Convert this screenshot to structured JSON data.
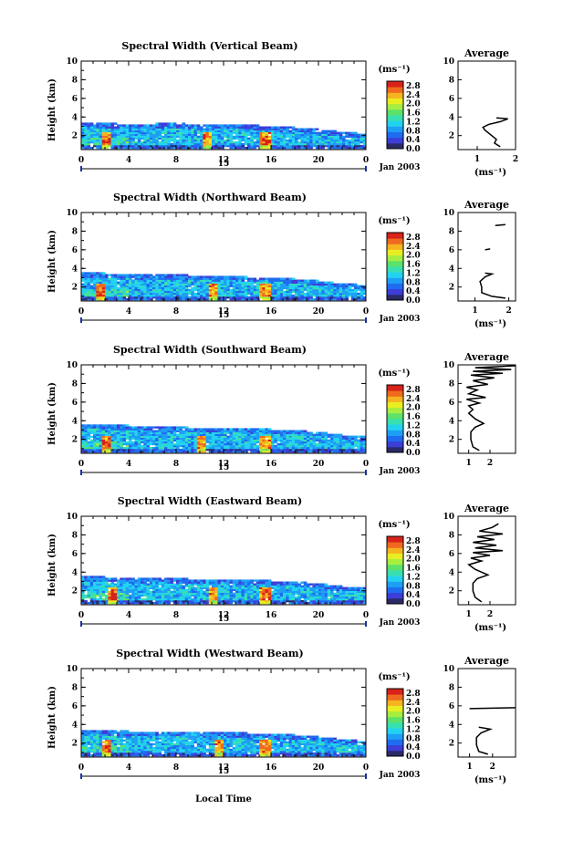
{
  "figure": {
    "xlabel": "Local Time",
    "date_label": "Jan 2003",
    "day_label": "15",
    "units_label": "(ms⁻¹)",
    "avg_title": "Average",
    "avg_xlabel": "(ms⁻¹)",
    "ylabel": "Height (km)"
  },
  "colors": {
    "colorbar": [
      "#2a2a66",
      "#3d3dd8",
      "#1e6cf0",
      "#1e9ff5",
      "#22d3f0",
      "#38e0b0",
      "#5ce26a",
      "#a6ee40",
      "#e9ee22",
      "#f5b320",
      "#ef6a1e",
      "#d8221a"
    ],
    "background": "#ffffff",
    "profile_line": "#000000"
  },
  "chart_data": [
    {
      "type": "heatmap",
      "title": "Spectral Width (Vertical Beam)",
      "xlabel": "Local Time",
      "ylabel": "Height (km)",
      "x_ticks": [
        "0",
        "4",
        "8",
        "12",
        "16",
        "20",
        "0"
      ],
      "xlim": [
        0,
        24
      ],
      "y_ticks": [
        "2",
        "4",
        "6",
        "8",
        "10"
      ],
      "ylim": [
        0.5,
        10
      ],
      "colorbar_ticks": [
        "0.0",
        "0.4",
        "0.8",
        "1.2",
        "1.6",
        "2.0",
        "2.4",
        "2.8"
      ],
      "clim": [
        0,
        3.0
      ],
      "echo_top_km": [
        [
          0,
          3.4
        ],
        [
          2,
          3.3
        ],
        [
          4,
          3.1
        ],
        [
          6,
          3.2
        ],
        [
          8,
          3.3
        ],
        [
          10,
          3.0
        ],
        [
          12,
          3.2
        ],
        [
          14,
          3.1
        ],
        [
          16,
          2.9
        ],
        [
          18,
          2.8
        ],
        [
          20,
          2.6
        ],
        [
          22,
          2.3
        ],
        [
          24,
          2.1
        ]
      ],
      "high_width_times": [
        2.0,
        10.5,
        15.3
      ],
      "average_profile": {
        "title": "Average",
        "xlabel": "(ms⁻¹)",
        "x_ticks": [
          "1",
          "2"
        ],
        "xlim": [
          0.5,
          2
        ],
        "ylim": [
          0.5,
          10
        ],
        "y_ticks": [
          "2",
          "4",
          "6",
          "8",
          "10"
        ],
        "points": [
          [
            1.6,
            0.8
          ],
          [
            1.45,
            1.2
          ],
          [
            1.5,
            1.6
          ],
          [
            1.35,
            2.1
          ],
          [
            1.2,
            2.6
          ],
          [
            1.15,
            2.9
          ],
          [
            1.3,
            3.2
          ],
          [
            1.6,
            3.5
          ],
          [
            1.8,
            3.8
          ],
          [
            1.5,
            3.9
          ]
        ]
      }
    },
    {
      "type": "heatmap",
      "title": "Spectral Width (Northward Beam)",
      "xlabel": "Local Time",
      "ylabel": "Height (km)",
      "x_ticks": [
        "0",
        "4",
        "8",
        "12",
        "16",
        "20",
        "0"
      ],
      "xlim": [
        0,
        24
      ],
      "y_ticks": [
        "2",
        "4",
        "6",
        "8",
        "10"
      ],
      "ylim": [
        0.5,
        10
      ],
      "colorbar_ticks": [
        "0.0",
        "0.4",
        "0.8",
        "1.2",
        "1.6",
        "2.0",
        "2.4",
        "2.8"
      ],
      "clim": [
        0,
        3.0
      ],
      "echo_top_km": [
        [
          0,
          3.5
        ],
        [
          2,
          3.4
        ],
        [
          4,
          3.3
        ],
        [
          6,
          3.2
        ],
        [
          8,
          3.3
        ],
        [
          10,
          3.1
        ],
        [
          12,
          3.2
        ],
        [
          14,
          3.0
        ],
        [
          16,
          3.0
        ],
        [
          18,
          2.8
        ],
        [
          20,
          2.6
        ],
        [
          22,
          2.3
        ],
        [
          24,
          2.1
        ]
      ],
      "high_width_times": [
        1.5,
        11.0,
        15.3
      ],
      "average_profile": {
        "title": "Average",
        "xlabel": "(ms⁻¹)",
        "x_ticks": [
          "1",
          "2"
        ],
        "xlim": [
          0.5,
          2.2
        ],
        "ylim": [
          0.5,
          10
        ],
        "y_ticks": [
          "2",
          "4",
          "6",
          "8",
          "10"
        ],
        "points": [
          [
            1.9,
            0.8
          ],
          [
            1.5,
            1.0
          ],
          [
            1.2,
            1.4
          ],
          [
            1.2,
            2.0
          ],
          [
            1.15,
            2.6
          ],
          [
            1.3,
            3.1
          ],
          [
            1.5,
            3.4
          ],
          [
            1.3,
            3.5
          ]
        ],
        "segments": [
          [
            [
              1.3,
              6.0
            ],
            [
              1.45,
              6.1
            ]
          ],
          [
            [
              1.6,
              8.6
            ],
            [
              1.9,
              8.7
            ]
          ]
        ]
      }
    },
    {
      "type": "heatmap",
      "title": "Spectral Width (Southward Beam)",
      "xlabel": "Local Time",
      "ylabel": "Height (km)",
      "x_ticks": [
        "0",
        "4",
        "8",
        "12",
        "16",
        "20",
        "0"
      ],
      "xlim": [
        0,
        24
      ],
      "y_ticks": [
        "2",
        "4",
        "6",
        "8",
        "10"
      ],
      "ylim": [
        0.5,
        10
      ],
      "colorbar_ticks": [
        "0.0",
        "0.4",
        "0.8",
        "1.2",
        "1.6",
        "2.0",
        "2.4",
        "2.8"
      ],
      "clim": [
        0,
        3.0
      ],
      "echo_top_km": [
        [
          0,
          3.6
        ],
        [
          2,
          3.5
        ],
        [
          4,
          3.4
        ],
        [
          6,
          3.3
        ],
        [
          8,
          3.3
        ],
        [
          10,
          3.1
        ],
        [
          12,
          3.2
        ],
        [
          14,
          3.1
        ],
        [
          16,
          3.0
        ],
        [
          18,
          2.9
        ],
        [
          20,
          2.7
        ],
        [
          22,
          2.4
        ],
        [
          24,
          2.2
        ]
      ],
      "high_width_times": [
        2.0,
        10.0,
        15.3
      ],
      "average_profile": {
        "title": "Average",
        "xlabel": "",
        "x_ticks": [
          "1",
          "2"
        ],
        "xlim": [
          0.5,
          3.2
        ],
        "ylim": [
          0.5,
          10
        ],
        "y_ticks": [
          "2",
          "4",
          "6",
          "8",
          "10"
        ],
        "points": [
          [
            1.5,
            0.8
          ],
          [
            1.2,
            1.2
          ],
          [
            1.1,
            2.0
          ],
          [
            1.1,
            2.8
          ],
          [
            1.3,
            3.3
          ],
          [
            1.7,
            3.7
          ],
          [
            1.3,
            4.2
          ],
          [
            1.0,
            4.8
          ],
          [
            1.2,
            5.2
          ],
          [
            1.0,
            5.6
          ],
          [
            1.5,
            5.9
          ],
          [
            0.9,
            6.3
          ],
          [
            1.8,
            6.5
          ],
          [
            1.0,
            6.9
          ],
          [
            1.4,
            7.3
          ],
          [
            0.9,
            7.6
          ],
          [
            1.9,
            7.9
          ],
          [
            1.2,
            8.3
          ],
          [
            2.2,
            8.6
          ],
          [
            1.1,
            8.9
          ],
          [
            2.6,
            9.1
          ],
          [
            1.2,
            9.3
          ],
          [
            3.0,
            9.5
          ],
          [
            1.3,
            9.7
          ],
          [
            3.2,
            9.9
          ]
        ]
      }
    },
    {
      "type": "heatmap",
      "title": "Spectral Width (Eastward Beam)",
      "xlabel": "Local Time",
      "ylabel": "Height (km)",
      "x_ticks": [
        "0",
        "4",
        "8",
        "12",
        "16",
        "20",
        "0"
      ],
      "xlim": [
        0,
        24
      ],
      "y_ticks": [
        "2",
        "4",
        "6",
        "8",
        "10"
      ],
      "ylim": [
        0.5,
        10
      ],
      "colorbar_ticks": [
        "0.0",
        "0.4",
        "0.8",
        "1.2",
        "1.6",
        "2.0",
        "2.4",
        "2.8"
      ],
      "clim": [
        0,
        3.0
      ],
      "echo_top_km": [
        [
          0,
          3.5
        ],
        [
          2,
          3.4
        ],
        [
          4,
          3.3
        ],
        [
          6,
          3.3
        ],
        [
          8,
          3.3
        ],
        [
          10,
          3.1
        ],
        [
          12,
          3.2
        ],
        [
          14,
          3.1
        ],
        [
          16,
          3.0
        ],
        [
          18,
          2.9
        ],
        [
          20,
          2.7
        ],
        [
          22,
          2.4
        ],
        [
          24,
          2.2
        ]
      ],
      "high_width_times": [
        2.5,
        11.0,
        15.3
      ],
      "average_profile": {
        "title": "Average",
        "xlabel": "(ms⁻¹)",
        "x_ticks": [
          "1",
          "2"
        ],
        "xlim": [
          0.5,
          3.2
        ],
        "ylim": [
          0.5,
          10
        ],
        "y_ticks": [
          "2",
          "4",
          "6",
          "8",
          "10"
        ],
        "points": [
          [
            1.6,
            0.8
          ],
          [
            1.3,
            1.3
          ],
          [
            1.2,
            2.0
          ],
          [
            1.2,
            2.8
          ],
          [
            1.4,
            3.3
          ],
          [
            1.9,
            3.7
          ],
          [
            1.3,
            4.3
          ],
          [
            1.0,
            4.8
          ],
          [
            1.6,
            5.2
          ],
          [
            1.1,
            5.5
          ],
          [
            2.0,
            5.8
          ],
          [
            1.2,
            6.1
          ],
          [
            2.6,
            6.3
          ],
          [
            1.3,
            6.6
          ],
          [
            2.3,
            6.9
          ],
          [
            1.2,
            7.2
          ],
          [
            2.2,
            7.5
          ],
          [
            1.4,
            7.8
          ],
          [
            2.6,
            8.1
          ],
          [
            1.5,
            8.4
          ],
          [
            2.1,
            8.8
          ],
          [
            2.4,
            9.2
          ]
        ]
      }
    },
    {
      "type": "heatmap",
      "title": "Spectral Width (Westward Beam)",
      "xlabel": "Local Time",
      "ylabel": "Height (km)",
      "x_ticks": [
        "0",
        "4",
        "8",
        "12",
        "16",
        "20",
        "0"
      ],
      "xlim": [
        0,
        24
      ],
      "y_ticks": [
        "2",
        "4",
        "6",
        "8",
        "10"
      ],
      "ylim": [
        0.5,
        10
      ],
      "colorbar_ticks": [
        "0.0",
        "0.4",
        "0.8",
        "1.2",
        "1.6",
        "2.0",
        "2.4",
        "2.8"
      ],
      "clim": [
        0,
        3.0
      ],
      "echo_top_km": [
        [
          0,
          3.4
        ],
        [
          2,
          3.3
        ],
        [
          4,
          3.2
        ],
        [
          6,
          3.2
        ],
        [
          8,
          3.2
        ],
        [
          10,
          3.0
        ],
        [
          12,
          3.1
        ],
        [
          14,
          3.0
        ],
        [
          16,
          2.9
        ],
        [
          18,
          2.8
        ],
        [
          20,
          2.6
        ],
        [
          22,
          2.3
        ],
        [
          24,
          2.1
        ]
      ],
      "high_width_times": [
        2.0,
        11.5,
        15.3
      ],
      "average_profile": {
        "title": "Average",
        "xlabel": "(ms⁻¹)",
        "x_ticks": [
          "1",
          "2"
        ],
        "xlim": [
          0.5,
          3.0
        ],
        "ylim": [
          0.5,
          10
        ],
        "y_ticks": [
          "2",
          "4",
          "6",
          "8",
          "10"
        ],
        "points": [
          [
            1.8,
            0.8
          ],
          [
            1.4,
            1.1
          ],
          [
            1.3,
            1.8
          ],
          [
            1.3,
            2.6
          ],
          [
            1.5,
            3.1
          ],
          [
            1.9,
            3.5
          ],
          [
            1.4,
            3.7
          ]
        ],
        "segments": [
          [
            [
              1.0,
              5.7
            ],
            [
              3.0,
              5.8
            ]
          ]
        ]
      }
    }
  ]
}
